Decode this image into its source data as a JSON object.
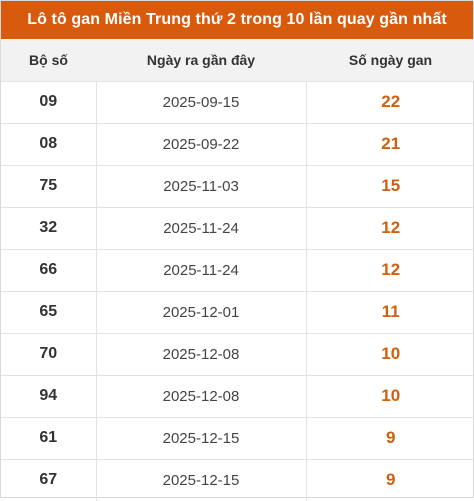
{
  "title": "Lô tô gan Miền Trung thứ 2 trong 10 lần quay gần nhất",
  "headers": {
    "number": "Bộ số",
    "last_date": "Ngày ra gần đây",
    "days_gan": "Số ngày gan"
  },
  "rows": [
    {
      "number": "09",
      "date": "2025-09-15",
      "days": "22"
    },
    {
      "number": "08",
      "date": "2025-09-22",
      "days": "21"
    },
    {
      "number": "75",
      "date": "2025-11-03",
      "days": "15"
    },
    {
      "number": "32",
      "date": "2025-11-24",
      "days": "12"
    },
    {
      "number": "66",
      "date": "2025-11-24",
      "days": "12"
    },
    {
      "number": "65",
      "date": "2025-12-01",
      "days": "11"
    },
    {
      "number": "70",
      "date": "2025-12-08",
      "days": "10"
    },
    {
      "number": "94",
      "date": "2025-12-08",
      "days": "10"
    },
    {
      "number": "61",
      "date": "2025-12-15",
      "days": "9"
    },
    {
      "number": "67",
      "date": "2025-12-15",
      "days": "9"
    }
  ],
  "colors": {
    "title_bg": "#d85a0d",
    "days_text": "#d0600e",
    "header_bg": "#f2f2f2"
  }
}
